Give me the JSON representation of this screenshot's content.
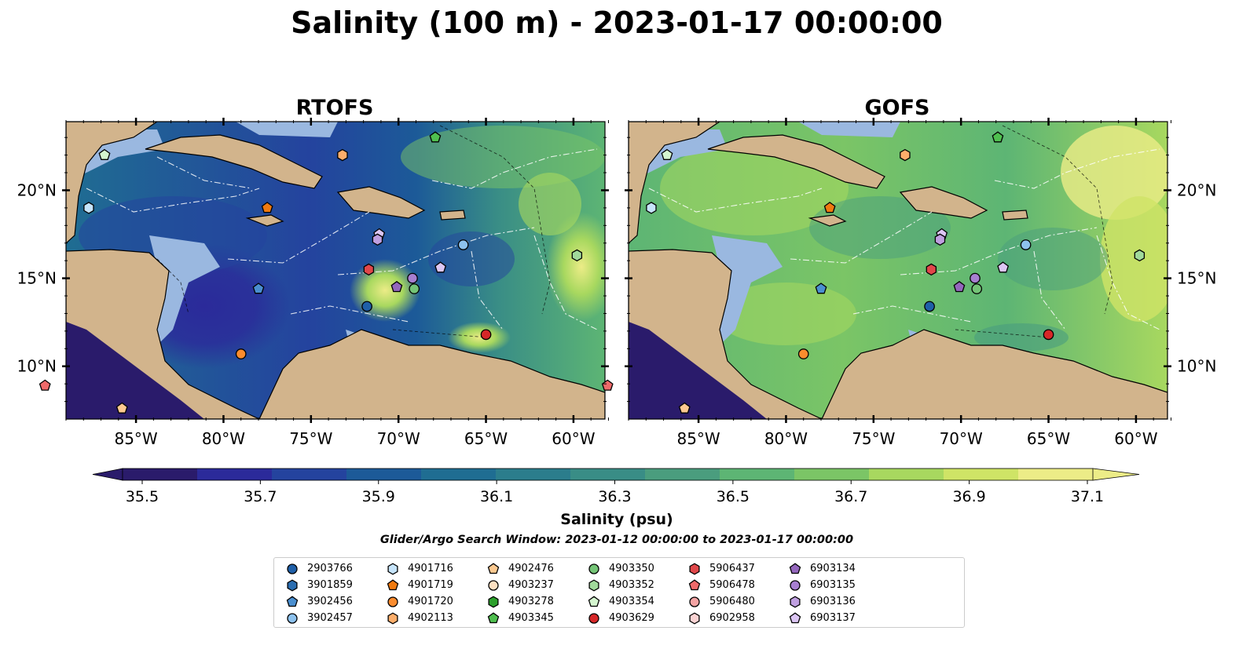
{
  "title": "Salinity (100 m) - 2023-01-17 00:00:00",
  "panels": [
    {
      "title": "RTOFS"
    },
    {
      "title": "GOFS"
    }
  ],
  "axes": {
    "lon_ticks": [
      "85°W",
      "80°W",
      "75°W",
      "70°W",
      "65°W",
      "60°W"
    ],
    "lat_ticks": [
      "20°N",
      "15°N",
      "10°N"
    ]
  },
  "colorbar": {
    "label": "Salinity (psu)",
    "ticks": [
      "35.5",
      "35.7",
      "35.9",
      "36.1",
      "36.3",
      "36.5",
      "36.7",
      "36.9",
      "37.1"
    ],
    "colors": [
      "#2a1b6b",
      "#2b2a9a",
      "#24439e",
      "#1c5a98",
      "#1f6d92",
      "#2b7d8c",
      "#398d86",
      "#4a9d7e",
      "#5db574",
      "#7bc566",
      "#a8d85f",
      "#cfe466",
      "#ecec87"
    ]
  },
  "search_window": "Glider/Argo Search Window: 2023-01-12 00:00:00 to 2023-01-17 00:00:00",
  "colors": {
    "land": "#d2b48c",
    "shelf": "#9ab8e0",
    "marker_stroke": "#000000"
  },
  "floats": [
    {
      "id": "2903766",
      "marker": "circle",
      "color": "#1f5fa8"
    },
    {
      "id": "3901859",
      "marker": "hexagon",
      "color": "#2a6db0"
    },
    {
      "id": "3902456",
      "marker": "pentagon",
      "color": "#4a8fd0"
    },
    {
      "id": "3902457",
      "marker": "circle",
      "color": "#8dc2ee"
    },
    {
      "id": "4901716",
      "marker": "hexagon",
      "color": "#c6e4fb"
    },
    {
      "id": "4901719",
      "marker": "pentagon",
      "color": "#f07a10"
    },
    {
      "id": "4901720",
      "marker": "circle",
      "color": "#fb8c2e"
    },
    {
      "id": "4902113",
      "marker": "hexagon",
      "color": "#fdae6b"
    },
    {
      "id": "4902476",
      "marker": "pentagon",
      "color": "#fdc990"
    },
    {
      "id": "4903237",
      "marker": "circle",
      "color": "#fde0c2"
    },
    {
      "id": "4903278",
      "marker": "hexagon",
      "color": "#2ca02c"
    },
    {
      "id": "4903345",
      "marker": "pentagon",
      "color": "#4fbf4f"
    },
    {
      "id": "4903350",
      "marker": "circle",
      "color": "#74c476"
    },
    {
      "id": "4903352",
      "marker": "hexagon",
      "color": "#a1d99b"
    },
    {
      "id": "4903354",
      "marker": "pentagon",
      "color": "#d4f5cf"
    },
    {
      "id": "4903629",
      "marker": "circle",
      "color": "#d62728"
    },
    {
      "id": "5906437",
      "marker": "hexagon",
      "color": "#e0474a"
    },
    {
      "id": "5906478",
      "marker": "pentagon",
      "color": "#ef6a6a"
    },
    {
      "id": "5906480",
      "marker": "circle",
      "color": "#f4a3a3"
    },
    {
      "id": "6902958",
      "marker": "hexagon",
      "color": "#fbd3d3"
    },
    {
      "id": "6903134",
      "marker": "pentagon",
      "color": "#9467bd"
    },
    {
      "id": "6903135",
      "marker": "circle",
      "color": "#a77fd0"
    },
    {
      "id": "6903136",
      "marker": "hexagon",
      "color": "#bf9fe0"
    },
    {
      "id": "6903137",
      "marker": "pentagon",
      "color": "#dcc6f4"
    }
  ],
  "float_positions": [
    {
      "id": "4903354",
      "lon": -86.8,
      "lat": 22.0
    },
    {
      "id": "4901716",
      "lon": -87.7,
      "lat": 19.0
    },
    {
      "id": "5906478",
      "lon": -90.2,
      "lat": 8.9
    },
    {
      "id": "4902476",
      "lon": -85.8,
      "lat": 7.6
    },
    {
      "id": "4901719",
      "lon": -77.5,
      "lat": 19.0
    },
    {
      "id": "4902113",
      "lon": -73.2,
      "lat": 22.0
    },
    {
      "id": "4903345",
      "lon": -67.9,
      "lat": 23.0
    },
    {
      "id": "3902456",
      "lon": -78.0,
      "lat": 14.4
    },
    {
      "id": "4901720",
      "lon": -79.0,
      "lat": 10.7
    },
    {
      "id": "6903137",
      "lon": -71.1,
      "lat": 17.5
    },
    {
      "id": "6903136",
      "lon": -71.2,
      "lat": 17.2
    },
    {
      "id": "3902457",
      "lon": -66.3,
      "lat": 16.9
    },
    {
      "id": "4903352",
      "lon": -59.8,
      "lat": 16.3
    },
    {
      "id": "5906437",
      "lon": -71.7,
      "lat": 15.5
    },
    {
      "id": "6903137",
      "lon": -67.6,
      "lat": 15.6
    },
    {
      "id": "6903135",
      "lon": -69.2,
      "lat": 15.0
    },
    {
      "id": "6903134",
      "lon": -70.1,
      "lat": 14.5
    },
    {
      "id": "4903350",
      "lon": -69.1,
      "lat": 14.4
    },
    {
      "id": "2903766",
      "lon": -71.8,
      "lat": 13.4
    },
    {
      "id": "4903629",
      "lon": -65.0,
      "lat": 11.8
    }
  ]
}
